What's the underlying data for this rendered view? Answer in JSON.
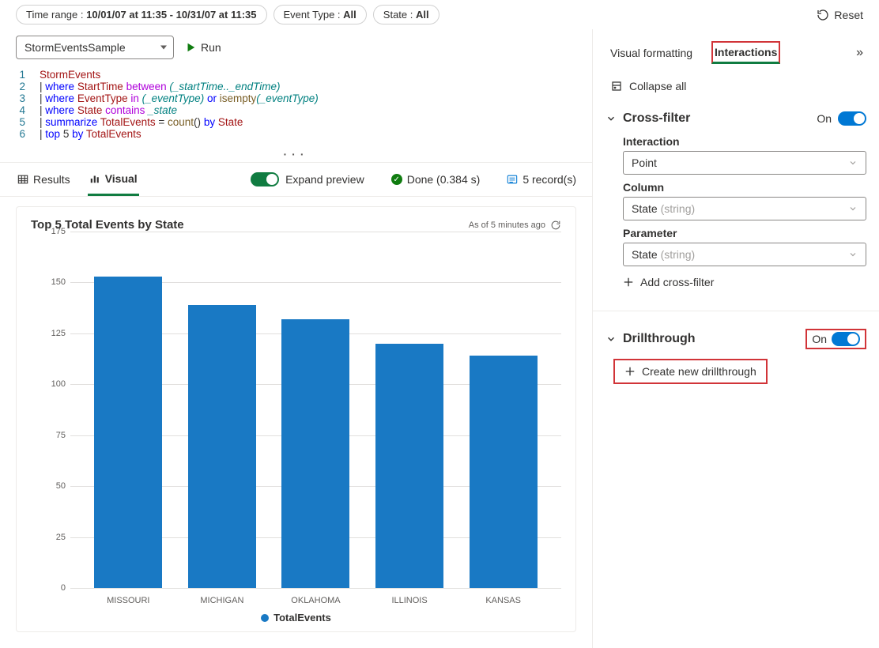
{
  "topbar": {
    "time_range_key": "Time range :",
    "time_range_value": "10/01/07 at 11:35 - 10/31/07 at 11:35",
    "event_type_key": "Event Type :",
    "event_type_value": "All",
    "state_key": "State :",
    "state_value": "All",
    "reset": "Reset"
  },
  "query": {
    "source": "StormEventsSample",
    "run": "Run",
    "lines": {
      "l1": "StormEvents",
      "l2_where": "where",
      "l2_field": "StartTime",
      "l2_between": "between",
      "l2_args": "(_startTime.._endTime)",
      "l3_where": "where",
      "l3_field": "EventType",
      "l3_in": "in",
      "l3_arg1": "(_eventType)",
      "l3_or": "or",
      "l3_fn": "isempty",
      "l3_arg2": "(_eventType)",
      "l4_where": "where",
      "l4_field": "State",
      "l4_contains": "contains",
      "l4_var": "_state",
      "l5_summ": "summarize",
      "l5_name": "TotalEvents",
      "l5_eq": "=",
      "l5_fn": "count",
      "l5_paren": "()",
      "l5_by": "by",
      "l5_field": "State",
      "l6_top": "top",
      "l6_num": "5",
      "l6_by": "by",
      "l6_field": "TotalEvents"
    }
  },
  "results": {
    "tab_results": "Results",
    "tab_visual": "Visual",
    "expand_preview": "Expand preview",
    "done": "Done (0.384 s)",
    "record_count": "5 record(s)"
  },
  "chart": {
    "title": "Top 5 Total Events by State",
    "asof": "As of 5 minutes ago",
    "type": "bar",
    "ymax": 175,
    "yticks": [
      0,
      25,
      50,
      75,
      100,
      125,
      150,
      175
    ],
    "categories": [
      "MISSOURI",
      "MICHIGAN",
      "OKLAHOMA",
      "ILLINOIS",
      "KANSAS"
    ],
    "values": [
      153,
      139,
      132,
      120,
      114
    ],
    "bar_color": "#1979c4",
    "grid_color": "#e1dfdd",
    "legend_label": "TotalEvents"
  },
  "panel": {
    "tab_visual_formatting": "Visual formatting",
    "tab_interactions": "Interactions",
    "collapse_all": "Collapse all",
    "crossfilter": {
      "title": "Cross-filter",
      "on": "On",
      "interaction_label": "Interaction",
      "interaction_value": "Point",
      "column_label": "Column",
      "column_value": "State",
      "column_hint": "(string)",
      "parameter_label": "Parameter",
      "parameter_value": "State",
      "parameter_hint": "(string)",
      "add": "Add cross-filter"
    },
    "drillthrough": {
      "title": "Drillthrough",
      "on": "On",
      "create": "Create new drillthrough"
    }
  }
}
